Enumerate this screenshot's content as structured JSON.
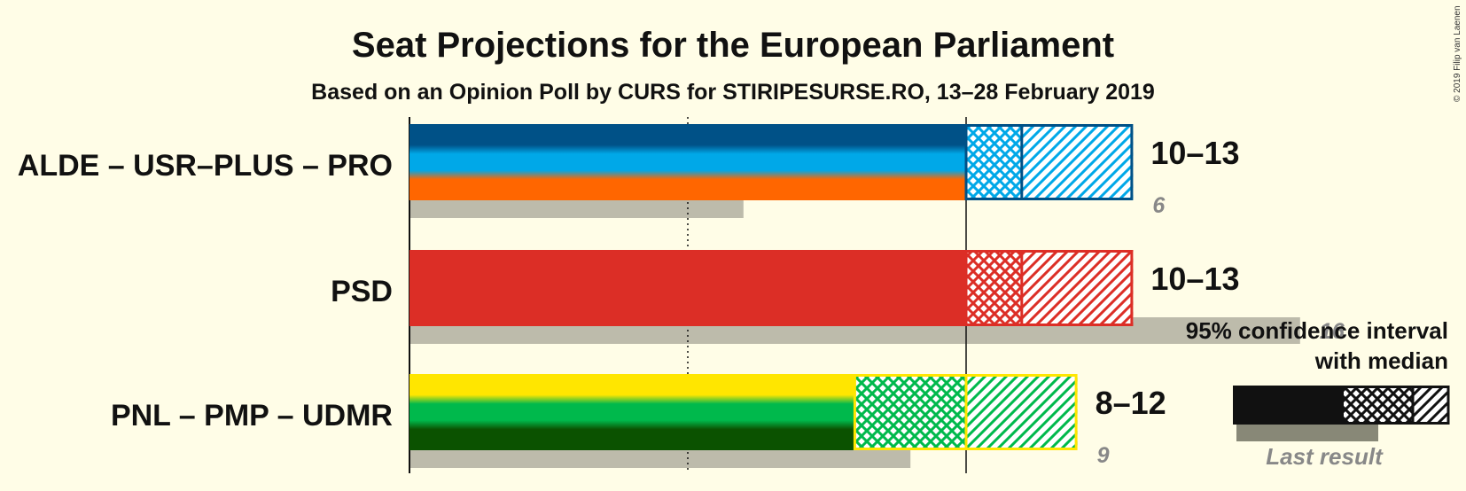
{
  "title": "Seat Projections for the European Parliament",
  "subtitle": "Based on an Opinion Poll by CURS for STIRIPESURSE.RO, 13–28 February 2019",
  "copyright": "© 2019 Filip van Laenen",
  "chart_data": {
    "type": "bar",
    "orientation": "horizontal",
    "categories": [
      "ALDE – USR–PLUS – PRO",
      "PSD",
      "PNL – PMP – UDMR"
    ],
    "series": [
      {
        "name": "ALDE – USR–PLUS – PRO",
        "ci_low": 10,
        "median": 11,
        "ci_high": 13,
        "range_label": "10–13",
        "last_result": 6,
        "last_label": "6",
        "colors": [
          "#005187",
          "#00a8e8",
          "#ff6600"
        ]
      },
      {
        "name": "PSD",
        "ci_low": 10,
        "median": 11,
        "ci_high": 13,
        "range_label": "10–13",
        "last_result": 16,
        "last_label": "16",
        "colors": [
          "#dc2e26"
        ]
      },
      {
        "name": "PNL – PMP – UDMR",
        "ci_low": 8,
        "median": 10,
        "ci_high": 12,
        "range_label": "8–12",
        "last_result": 9,
        "last_label": "9",
        "colors": [
          "#ffe600",
          "#00b94c",
          "#0b5200"
        ]
      }
    ],
    "xlim": [
      0,
      17
    ],
    "gridlines": [
      {
        "value": 5,
        "style": "dotted"
      },
      {
        "value": 10,
        "style": "solid"
      }
    ],
    "last_result_color": "#bdbbab",
    "legend": {
      "line1": "95% confidence interval",
      "line2": "with median",
      "last_result_label": "Last result",
      "placement": "bottom-right"
    }
  }
}
